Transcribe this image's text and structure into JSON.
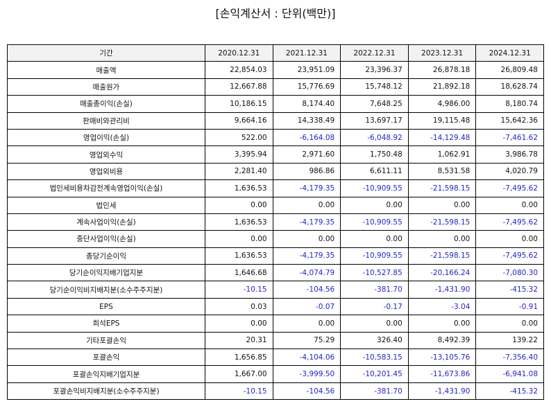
{
  "header": {
    "title": "[손익계산서 : 단위(백만)]"
  },
  "table": {
    "columns": [
      "기간",
      "2020.12.31",
      "2021.12.31",
      "2022.12.31",
      "2023.12.31",
      "2024.12.31"
    ],
    "rows": [
      [
        "매출액",
        "22,854.03",
        "23,951.09",
        "23,396.37",
        "26,878.18",
        "26,809.48"
      ],
      [
        "매출원가",
        "12,667.88",
        "15,776.69",
        "15,748.12",
        "21,892.18",
        "18,628.74"
      ],
      [
        "매출총이익(손실)",
        "10,186.15",
        "8,174.40",
        "7,648.25",
        "4,986.00",
        "8,180.74"
      ],
      [
        "판매비와관리비",
        "9,664.16",
        "14,338.49",
        "13,697.17",
        "19,115.48",
        "15,642.36"
      ],
      [
        "영업이익(손실)",
        "522.00",
        "-6,164.08",
        "-6,048.92",
        "-14,129.48",
        "-7,461.62"
      ],
      [
        "영업외수익",
        "3,395.94",
        "2,971.60",
        "1,750.48",
        "1,062.91",
        "3,986.78"
      ],
      [
        "영업외비용",
        "2,281.40",
        "986.86",
        "6,611.11",
        "8,531.58",
        "4,020.79"
      ],
      [
        "법인세비용차감전계속영업이익(손실)",
        "1,636.53",
        "-4,179.35",
        "-10,909.55",
        "-21,598.15",
        "-7,495.62"
      ],
      [
        "법인세",
        "0.00",
        "0.00",
        "0.00",
        "0.00",
        "0.00"
      ],
      [
        "계속사업이익(손실)",
        "1,636.53",
        "-4,179.35",
        "-10,909.55",
        "-21,598.15",
        "-7,495.62"
      ],
      [
        "중단사업이익(손실)",
        "0.00",
        "0.00",
        "0.00",
        "0.00",
        "0.00"
      ],
      [
        "총당기순이익",
        "1,636.53",
        "-4,179.35",
        "-10,909.55",
        "-21,598.15",
        "-7,495.62"
      ],
      [
        "당기순이익지배기업지분",
        "1,646.68",
        "-4,074.79",
        "-10,527.85",
        "-20,166.24",
        "-7,080.30"
      ],
      [
        "당기순이익비지배지분(소수주주지분)",
        "-10.15",
        "-104.56",
        "-381.70",
        "-1,431.90",
        "-415.32"
      ],
      [
        "EPS",
        "0.03",
        "-0.07",
        "-0.17",
        "-3.04",
        "-0.91"
      ],
      [
        "희석EPS",
        "0.00",
        "0.00",
        "0.00",
        "0.00",
        "0.00"
      ],
      [
        "기타포괄손익",
        "20.31",
        "75.29",
        "326.40",
        "8,492.39",
        "139.22"
      ],
      [
        "포괄손익",
        "1,656.85",
        "-4,104.06",
        "-10,583.15",
        "-13,105.76",
        "-7,356.40"
      ],
      [
        "포괄손익지배기업지분",
        "1,667.00",
        "-3,999.50",
        "-10,201.45",
        "-11,673.86",
        "-6,941.08"
      ],
      [
        "포괄손익비지배지분(소수주주지분)",
        "-10.15",
        "-104.56",
        "-381.70",
        "-1,431.90",
        "-415.32"
      ]
    ]
  }
}
